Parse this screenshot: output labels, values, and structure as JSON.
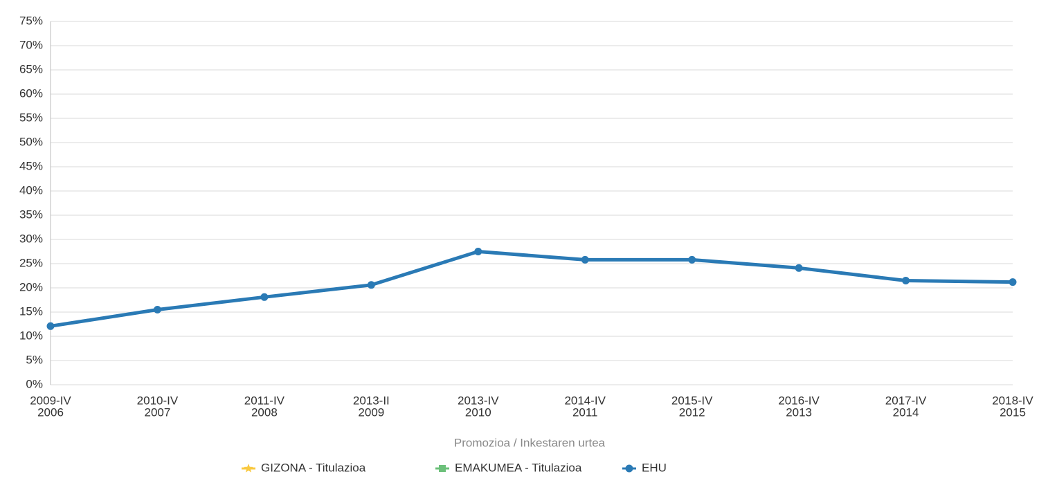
{
  "chart_data": {
    "type": "line",
    "x_label": "Promozioa / Inkestaren urtea",
    "categories": [
      [
        "2009-IV",
        "2006"
      ],
      [
        "2010-IV",
        "2007"
      ],
      [
        "2011-IV",
        "2008"
      ],
      [
        "2013-II",
        "2009"
      ],
      [
        "2013-IV",
        "2010"
      ],
      [
        "2014-IV",
        "2011"
      ],
      [
        "2015-IV",
        "2012"
      ],
      [
        "2016-IV",
        "2013"
      ],
      [
        "2017-IV",
        "2014"
      ],
      [
        "2018-IV",
        "2015"
      ]
    ],
    "series": [
      {
        "name": "GIZONA - Titulazioa",
        "color": "#f9c940",
        "marker": "star",
        "values": [
          null,
          null,
          null,
          null,
          null,
          null,
          null,
          null,
          null,
          null
        ]
      },
      {
        "name": "EMAKUMEA - Titulazioa",
        "color": "#6cc07a",
        "marker": "square",
        "values": [
          null,
          null,
          null,
          null,
          null,
          null,
          null,
          null,
          null,
          null
        ]
      },
      {
        "name": "EHU",
        "color": "#2a7ab5",
        "marker": "circle",
        "values": [
          12.1,
          15.5,
          18.1,
          20.6,
          27.5,
          25.8,
          25.8,
          24.1,
          21.5,
          21.2
        ]
      }
    ],
    "ylim": [
      0,
      75
    ],
    "yticks": [
      {
        "value": 0,
        "label": "0%"
      },
      {
        "value": 5,
        "label": "5%"
      },
      {
        "value": 10,
        "label": "10%"
      },
      {
        "value": 15,
        "label": "15%"
      },
      {
        "value": 20,
        "label": "20%"
      },
      {
        "value": 25,
        "label": "25%"
      },
      {
        "value": 30,
        "label": "30%"
      },
      {
        "value": 35,
        "label": "35%"
      },
      {
        "value": 40,
        "label": "40%"
      },
      {
        "value": 45,
        "label": "45%"
      },
      {
        "value": 50,
        "label": "50%"
      },
      {
        "value": 55,
        "label": "55%"
      },
      {
        "value": 60,
        "label": "60%"
      },
      {
        "value": 65,
        "label": "65%"
      },
      {
        "value": 70,
        "label": "70%"
      },
      {
        "value": 75,
        "label": "75%"
      }
    ],
    "grid": true,
    "legend": "bottom"
  }
}
